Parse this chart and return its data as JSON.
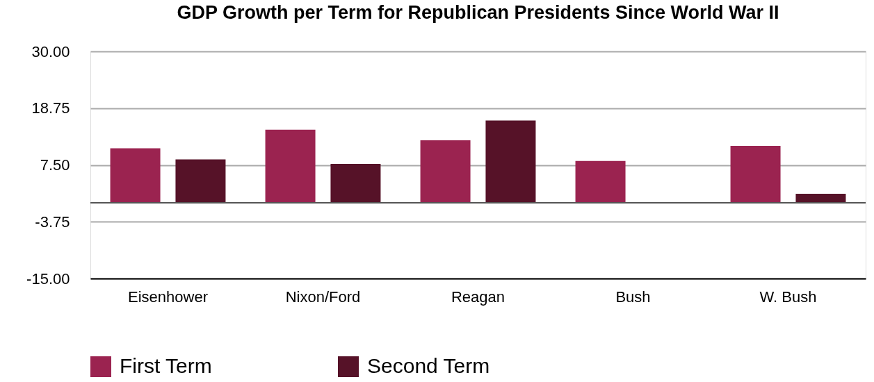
{
  "chart_data": {
    "type": "bar",
    "title": "GDP Growth per Term for Republican Presidents Since World War II",
    "categories": [
      "Eisenhower",
      "Nixon/Ford",
      "Reagan",
      "Bush",
      "W. Bush"
    ],
    "series": [
      {
        "name": "First Term",
        "color": "#9b2350",
        "values": [
          10.8,
          14.5,
          12.4,
          8.3,
          11.3
        ]
      },
      {
        "name": "Second Term",
        "color": "#561228",
        "values": [
          8.6,
          7.7,
          16.3,
          null,
          1.8
        ]
      }
    ],
    "ylim": [
      -15,
      30
    ],
    "yticks": [
      {
        "value": -15,
        "label": "-15.00"
      },
      {
        "value": -3.75,
        "label": "-3.75"
      },
      {
        "value": 7.5,
        "label": "7.50"
      },
      {
        "value": 18.75,
        "label": "18.75"
      },
      {
        "value": 30,
        "label": "30.00"
      }
    ],
    "ref_lines": [
      {
        "axis": "y",
        "value": 0,
        "color": "#555555"
      }
    ],
    "grid": "y",
    "legend": "bottom"
  }
}
